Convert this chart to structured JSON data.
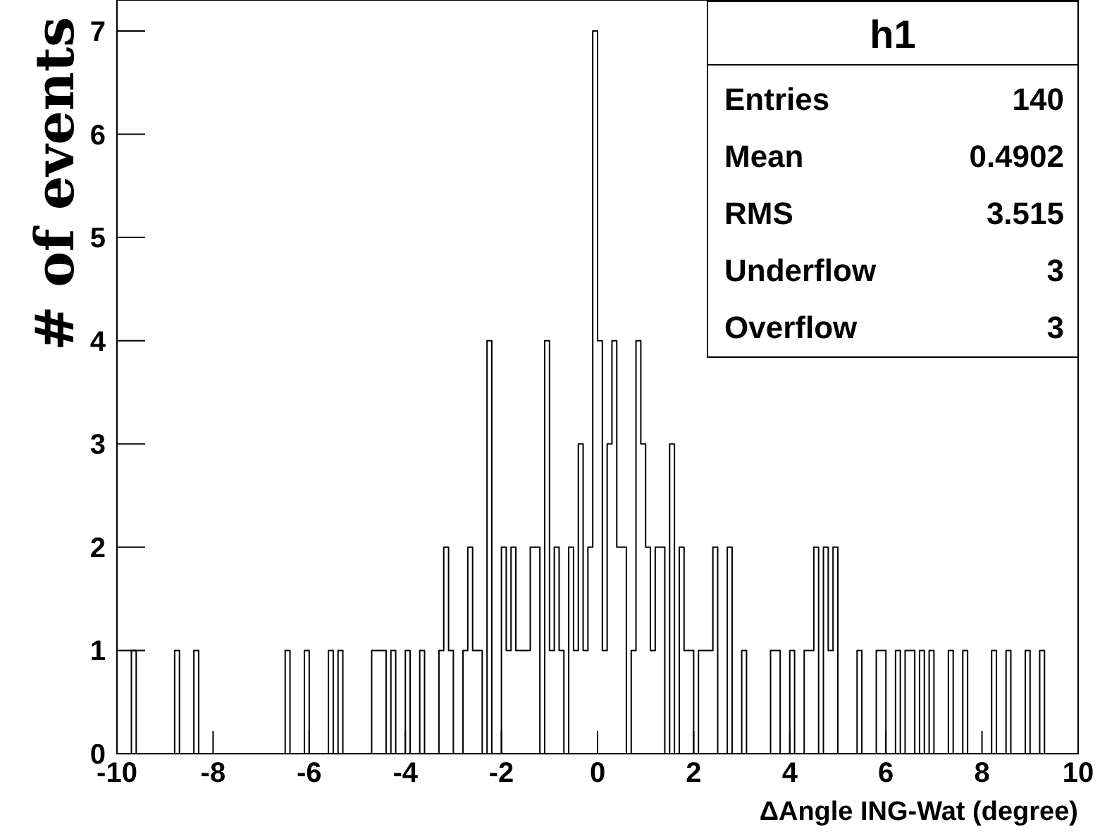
{
  "chart_data": {
    "type": "histogram",
    "xlabel": "ΔAngle ING-Wat (degree)",
    "ylabel": "# of events",
    "bins": [
      -10,
      -9.9,
      -9.8,
      -9.7,
      -9.6,
      -9.5,
      -9.4,
      -9.3,
      -9.2,
      -9.1,
      -9,
      -8.9,
      -8.8,
      -8.7,
      -8.6,
      -8.5,
      -8.4,
      -8.3,
      -8.2,
      -8.1,
      -8,
      -7.9,
      -7.8,
      -7.7,
      -7.6,
      -7.5,
      -7.4,
      -7.3,
      -7.2,
      -7.1,
      -7,
      -6.9,
      -6.8,
      -6.7,
      -6.6,
      -6.5,
      -6.4,
      -6.3,
      -6.2,
      -6.1,
      -6,
      -5.9,
      -5.8,
      -5.7,
      -5.6,
      -5.5,
      -5.4,
      -5.3,
      -5.2,
      -5.1,
      -5,
      -4.9,
      -4.8,
      -4.7,
      -4.6,
      -4.5,
      -4.4,
      -4.3,
      -4.2,
      -4.1,
      -4,
      -3.9,
      -3.8,
      -3.7,
      -3.6,
      -3.5,
      -3.4,
      -3.3,
      -3.2,
      -3.1,
      -3,
      -2.9,
      -2.8,
      -2.7,
      -2.6,
      -2.5,
      -2.4,
      -2.3,
      -2.2,
      -2.1,
      -2,
      -1.9,
      -1.8,
      -1.7,
      -1.6,
      -1.5,
      -1.4,
      -1.3,
      -1.2,
      -1.1,
      -1,
      -0.9,
      -0.8,
      -0.7,
      -0.6,
      -0.5,
      -0.4,
      -0.3,
      -0.2,
      -0.1,
      0,
      0.1,
      0.2,
      0.3,
      0.4,
      0.5,
      0.6,
      0.7,
      0.8,
      0.9,
      1,
      1.1,
      1.2,
      1.3,
      1.4,
      1.5,
      1.6,
      1.7,
      1.8,
      1.9,
      2,
      2.1,
      2.2,
      2.3,
      2.4,
      2.5,
      2.6,
      2.7,
      2.8,
      2.9,
      3,
      3.1,
      3.2,
      3.3,
      3.4,
      3.5,
      3.6,
      3.7,
      3.8,
      3.9,
      4,
      4.1,
      4.2,
      4.3,
      4.4,
      4.5,
      4.6,
      4.7,
      4.8,
      4.9,
      5,
      5.1,
      5.2,
      5.3,
      5.4,
      5.5,
      5.6,
      5.7,
      5.8,
      5.9,
      6,
      6.1,
      6.2,
      6.3,
      6.4,
      6.5,
      6.6,
      6.7,
      6.8,
      6.9,
      7,
      7.1,
      7.2,
      7.3,
      7.4,
      7.5,
      7.6,
      7.7,
      7.8,
      7.9,
      8,
      8.1,
      8.2,
      8.3,
      8.4,
      8.5,
      8.6,
      8.7,
      8.8,
      8.9,
      9,
      9.1,
      9.2,
      9.3,
      9.4,
      9.5,
      9.6,
      9.7,
      9.8,
      9.9,
      10
    ],
    "values": [
      0,
      0,
      0,
      1,
      0,
      0,
      0,
      0,
      0,
      0,
      0,
      0,
      1,
      0,
      0,
      0,
      1,
      0,
      0,
      0,
      0,
      0,
      0,
      0,
      0,
      0,
      0,
      0,
      0,
      0,
      0,
      0,
      0,
      0,
      0,
      1,
      0,
      0,
      0,
      1,
      0,
      0,
      0,
      0,
      1,
      0,
      1,
      0,
      0,
      0,
      0,
      0,
      0,
      1,
      1,
      1,
      0,
      1,
      0,
      0,
      1,
      0,
      0,
      1,
      0,
      0,
      0,
      1,
      2,
      1,
      0,
      0,
      1,
      2,
      1,
      1,
      0,
      4,
      0,
      0,
      2,
      1,
      2,
      1,
      1,
      1,
      2,
      2,
      0,
      4,
      1,
      2,
      1,
      0,
      2,
      1,
      3,
      1,
      2,
      7,
      4,
      1,
      3,
      4,
      2,
      2,
      0,
      1,
      4,
      3,
      2,
      1,
      2,
      2,
      0,
      3,
      0,
      2,
      1,
      1,
      0,
      1,
      1,
      1,
      2,
      0,
      0,
      2,
      0,
      0,
      1,
      0,
      0,
      0,
      0,
      0,
      1,
      1,
      0,
      0,
      1,
      0,
      0,
      1,
      1,
      2,
      0,
      2,
      1,
      2,
      0,
      0,
      0,
      0,
      1,
      0,
      0,
      0,
      1,
      1,
      0,
      0,
      1,
      0,
      1,
      1,
      0,
      1,
      0,
      1,
      0,
      0,
      0,
      1,
      0,
      0,
      1,
      0,
      0,
      0,
      0,
      0,
      1,
      0,
      0,
      1,
      0,
      0,
      0,
      1,
      0,
      0,
      1,
      0,
      0,
      0,
      0,
      0,
      0,
      0
    ],
    "color": "#000000",
    "xlim": [
      -10,
      10
    ],
    "xticks": [
      -10,
      -8,
      -6,
      -4,
      -2,
      0,
      2,
      4,
      6,
      8,
      10
    ],
    "ylim": [
      0,
      7.3
    ],
    "yticks": [
      0,
      1,
      2,
      3,
      4,
      5,
      6,
      7
    ],
    "grid": false,
    "annotations": [
      "h1",
      "Entries",
      "140",
      "Mean",
      "0.4902",
      "RMS",
      "3.515",
      "Underflow",
      "3",
      "Overflow",
      "3"
    ]
  }
}
